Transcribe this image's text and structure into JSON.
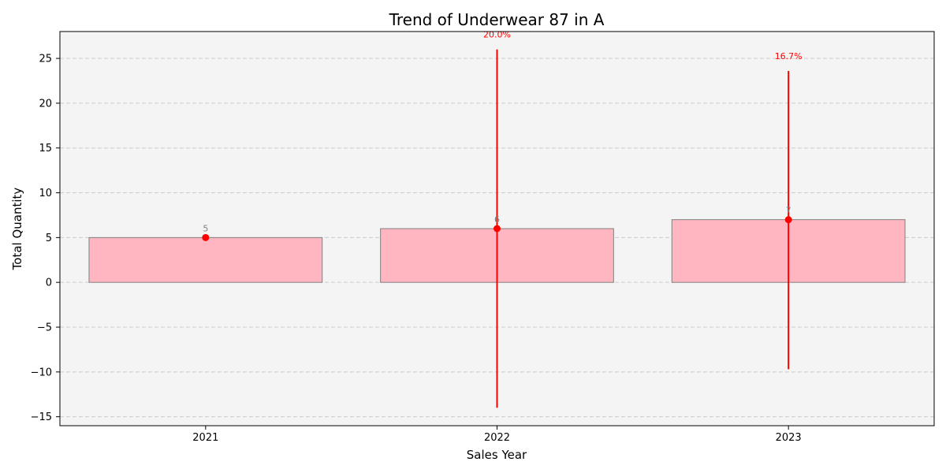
{
  "chart_data": {
    "type": "bar",
    "title": "Trend of Underwear 87 in A",
    "xlabel": "Sales Year",
    "ylabel": "Total Quantity",
    "categories": [
      "2021",
      "2022",
      "2023"
    ],
    "values": [
      5,
      6,
      7
    ],
    "value_labels": [
      "5",
      "6",
      "7"
    ],
    "ylim": [
      -16,
      28
    ],
    "yticks": [
      -15,
      -10,
      -5,
      0,
      5,
      10,
      15,
      20,
      25
    ],
    "ytick_labels": [
      "−15",
      "−10",
      "−5",
      "0",
      "5",
      "10",
      "15",
      "20",
      "25"
    ],
    "error_bars": [
      null,
      [
        -14,
        26
      ],
      [
        -9.7,
        23.6
      ]
    ],
    "growth_labels": [
      "",
      "20.0%",
      "16.7%"
    ],
    "grid": true,
    "colors": {
      "bar_fill": "#ffb6c1",
      "bar_edge": "#808080",
      "marker": "#ff0000",
      "errorbar": "#ff0000",
      "plot_background": "#f4f4f4",
      "grid": "#cccccc"
    }
  }
}
